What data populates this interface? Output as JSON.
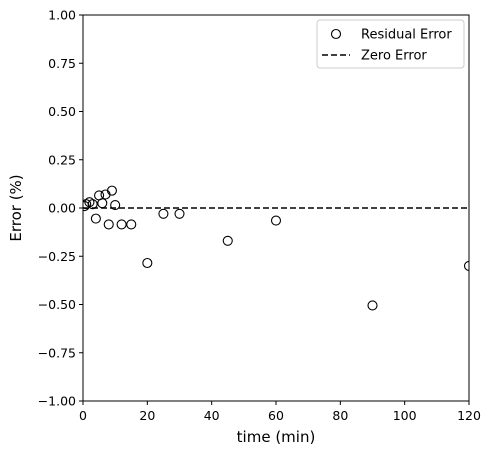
{
  "chart_data": {
    "type": "scatter",
    "title": "",
    "xlabel": "time (min)",
    "ylabel": "Error (%)",
    "xlim": [
      0,
      120
    ],
    "ylim": [
      -1.0,
      1.0
    ],
    "grid": false,
    "legend_position": "top-right",
    "x_ticks": [
      0,
      20,
      40,
      60,
      80,
      100,
      120
    ],
    "x_tick_labels": [
      "0",
      "20",
      "40",
      "60",
      "80",
      "100",
      "120"
    ],
    "y_ticks": [
      -1.0,
      -0.75,
      -0.5,
      -0.25,
      0.0,
      0.25,
      0.5,
      0.75,
      1.0
    ],
    "y_tick_labels": [
      "−1.00",
      "−0.75",
      "−0.50",
      "−0.25",
      "0.00",
      "0.25",
      "0.50",
      "0.75",
      "1.00"
    ],
    "series": [
      {
        "name": "Residual Error",
        "style": "open-circle",
        "color": "#000000",
        "points": [
          {
            "x": 0.5,
            "y": 0.01
          },
          {
            "x": 1,
            "y": 0.02
          },
          {
            "x": 2,
            "y": 0.03
          },
          {
            "x": 3,
            "y": 0.02
          },
          {
            "x": 4,
            "y": -0.055
          },
          {
            "x": 5,
            "y": 0.065
          },
          {
            "x": 6,
            "y": 0.025
          },
          {
            "x": 7,
            "y": 0.07
          },
          {
            "x": 8,
            "y": -0.085
          },
          {
            "x": 9,
            "y": 0.09
          },
          {
            "x": 10,
            "y": 0.015
          },
          {
            "x": 12,
            "y": -0.085
          },
          {
            "x": 15,
            "y": -0.085
          },
          {
            "x": 20,
            "y": -0.285
          },
          {
            "x": 25,
            "y": -0.03
          },
          {
            "x": 30,
            "y": -0.03
          },
          {
            "x": 45,
            "y": -0.17
          },
          {
            "x": 60,
            "y": -0.065
          },
          {
            "x": 90,
            "y": -0.505
          },
          {
            "x": 120,
            "y": -0.3
          }
        ]
      },
      {
        "name": "Zero Error",
        "style": "dashed-line",
        "color": "#000000",
        "points": [
          {
            "x": 0,
            "y": 0.0
          },
          {
            "x": 120,
            "y": 0.0
          }
        ]
      }
    ]
  }
}
